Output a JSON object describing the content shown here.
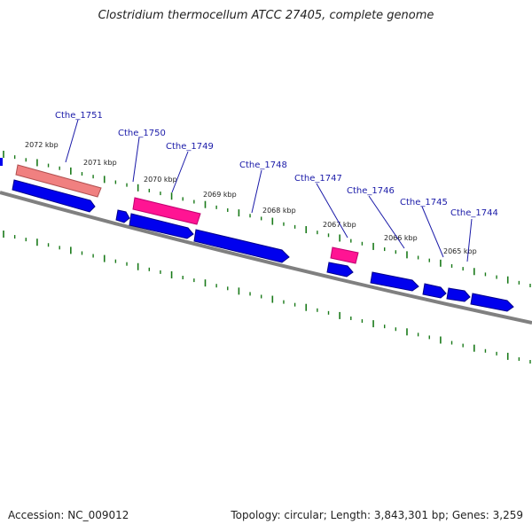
{
  "title": "Clostridium thermocellum ATCC 27405, complete genome",
  "footer": {
    "accession": "Accession: NC_009012",
    "summary": "Topology: circular; Length: 3,843,301 bp; Genes: 3,259"
  },
  "colors": {
    "backbone": "#808080",
    "forward_cds": "#0000ee",
    "reverse_highlight": "#ff1493",
    "reverse_pale": "#f08080",
    "tick": "#1a7a1a",
    "label_line": "#1a1aa8"
  },
  "kbp_labels": [
    "2072 kbp",
    "2071 kbp",
    "2070 kbp",
    "2069 kbp",
    "2068 kbp",
    "2067 kbp",
    "2066 kbp",
    "2065 kbp"
  ],
  "gene_labels": [
    "Cthe_1751",
    "Cthe_1750",
    "Cthe_1749",
    "Cthe_1748",
    "Cthe_1747",
    "Cthe_1746",
    "Cthe_1745",
    "Cthe_1744"
  ]
}
